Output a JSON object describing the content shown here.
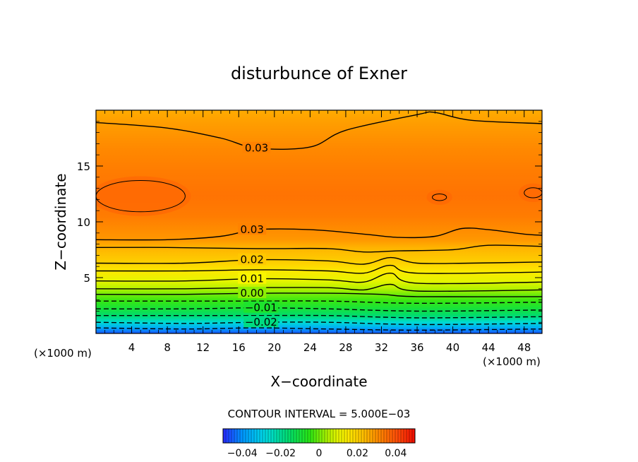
{
  "chart_data": {
    "type": "heatmap",
    "title": "disturbunce of Exner",
    "xlabel": "X−coordinate",
    "ylabel": "Z−coordinate",
    "x_unit_left": "(×1000 m)",
    "x_unit_right": "(×1000 m)",
    "xlim": [
      0,
      50
    ],
    "ylim": [
      0,
      20
    ],
    "x_ticks": [
      4,
      8,
      12,
      16,
      20,
      24,
      28,
      32,
      36,
      40,
      44,
      48
    ],
    "y_ticks": [
      5,
      10,
      15
    ],
    "contour_interval_text": "CONTOUR INTERVAL = 5.000E−03",
    "contour_interval": 0.005,
    "colorbar": {
      "range": [
        -0.05,
        0.05
      ],
      "ticks": [
        -0.04,
        -0.02,
        0,
        0.02,
        0.04
      ],
      "tick_labels": [
        "−0.04",
        "−0.02",
        "0",
        "0.02",
        "0.04"
      ]
    },
    "contour_labels": [
      {
        "text": "0.03",
        "x": 18.0,
        "z": 16.6
      },
      {
        "text": "0.03",
        "x": 17.5,
        "z": 9.3
      },
      {
        "text": "0.02",
        "x": 17.5,
        "z": 6.6
      },
      {
        "text": "0.01",
        "x": 17.5,
        "z": 4.9
      },
      {
        "text": "0.00",
        "x": 17.5,
        "z": 3.6
      },
      {
        "text": "−0.01",
        "x": 18.5,
        "z": 2.3
      },
      {
        "text": "−0.02",
        "x": 18.5,
        "z": 1.0
      }
    ],
    "contours": [
      {
        "level": 0.03,
        "points": [
          [
            0,
            18.9
          ],
          [
            8,
            18.4
          ],
          [
            14,
            17.5
          ],
          [
            18,
            16.6
          ],
          [
            24,
            16.7
          ],
          [
            28,
            18.2
          ],
          [
            36,
            19.6
          ],
          [
            38,
            19.8
          ],
          [
            42,
            19.1
          ],
          [
            50,
            18.8
          ]
        ]
      },
      {
        "level": 0.03,
        "points": [
          [
            0,
            8.4
          ],
          [
            8,
            8.4
          ],
          [
            14,
            8.7
          ],
          [
            18,
            9.3
          ],
          [
            24,
            9.3
          ],
          [
            30,
            8.9
          ],
          [
            34,
            8.6
          ],
          [
            38,
            8.7
          ],
          [
            41,
            9.4
          ],
          [
            44,
            9.3
          ],
          [
            48,
            8.9
          ],
          [
            50,
            8.8
          ]
        ]
      },
      {
        "level": 0.025,
        "points": [
          [
            0,
            7.7
          ],
          [
            8,
            7.7
          ],
          [
            18,
            7.6
          ],
          [
            26,
            7.6
          ],
          [
            30,
            7.3
          ],
          [
            34,
            7.4
          ],
          [
            40,
            7.5
          ],
          [
            44,
            7.9
          ],
          [
            50,
            7.8
          ]
        ]
      },
      {
        "level": 0.02,
        "points": [
          [
            0,
            6.3
          ],
          [
            10,
            6.3
          ],
          [
            18,
            6.6
          ],
          [
            26,
            6.5
          ],
          [
            30,
            6.2
          ],
          [
            33,
            6.8
          ],
          [
            36,
            6.3
          ],
          [
            42,
            6.3
          ],
          [
            50,
            6.4
          ]
        ]
      },
      {
        "level": 0.015,
        "points": [
          [
            0,
            5.6
          ],
          [
            10,
            5.6
          ],
          [
            18,
            5.7
          ],
          [
            26,
            5.6
          ],
          [
            30,
            5.4
          ],
          [
            33,
            6.1
          ],
          [
            36,
            5.4
          ],
          [
            50,
            5.5
          ]
        ]
      },
      {
        "level": 0.01,
        "points": [
          [
            0,
            4.7
          ],
          [
            10,
            4.7
          ],
          [
            18,
            4.9
          ],
          [
            26,
            4.8
          ],
          [
            30,
            4.6
          ],
          [
            33,
            5.4
          ],
          [
            36,
            4.5
          ],
          [
            50,
            4.6
          ]
        ]
      },
      {
        "level": 0.005,
        "points": [
          [
            0,
            4.0
          ],
          [
            10,
            4.0
          ],
          [
            18,
            4.1
          ],
          [
            26,
            4.1
          ],
          [
            30,
            3.9
          ],
          [
            33,
            4.4
          ],
          [
            36,
            3.8
          ],
          [
            50,
            3.9
          ]
        ]
      },
      {
        "level": 0.0,
        "points": [
          [
            0,
            3.5
          ],
          [
            10,
            3.5
          ],
          [
            18,
            3.6
          ],
          [
            26,
            3.6
          ],
          [
            32,
            3.5
          ],
          [
            36,
            3.3
          ],
          [
            50,
            3.3
          ]
        ]
      },
      {
        "level": -0.005,
        "points": [
          [
            0,
            2.9
          ],
          [
            10,
            2.9
          ],
          [
            18,
            2.9
          ],
          [
            26,
            2.9
          ],
          [
            36,
            2.7
          ],
          [
            50,
            2.8
          ]
        ]
      },
      {
        "level": -0.01,
        "points": [
          [
            0,
            2.2
          ],
          [
            10,
            2.2
          ],
          [
            18,
            2.3
          ],
          [
            26,
            2.2
          ],
          [
            36,
            2.0
          ],
          [
            50,
            2.1
          ]
        ]
      },
      {
        "level": -0.015,
        "points": [
          [
            0,
            1.6
          ],
          [
            10,
            1.6
          ],
          [
            18,
            1.6
          ],
          [
            26,
            1.6
          ],
          [
            36,
            1.4
          ],
          [
            50,
            1.5
          ]
        ]
      },
      {
        "level": -0.02,
        "points": [
          [
            0,
            1.0
          ],
          [
            10,
            0.9
          ],
          [
            18,
            1.0
          ],
          [
            26,
            1.0
          ],
          [
            36,
            0.8
          ],
          [
            50,
            0.9
          ]
        ]
      },
      {
        "level": -0.025,
        "points": [
          [
            0,
            0.5
          ],
          [
            10,
            0.4
          ],
          [
            18,
            0.5
          ],
          [
            26,
            0.4
          ],
          [
            36,
            0.3
          ],
          [
            50,
            0.4
          ]
        ]
      }
    ],
    "closed_contours": [
      {
        "level": 0.035,
        "cx": 5,
        "cz": 12.3,
        "rx": 5,
        "rz": 1.4
      },
      {
        "level": 0.035,
        "cx": 38.5,
        "cz": 12.2,
        "rx": 0.8,
        "rz": 0.3
      },
      {
        "level": 0.035,
        "cx": 49,
        "cz": 12.6,
        "rx": 1.0,
        "rz": 0.45
      }
    ],
    "field_profile": [
      {
        "z": 0.0,
        "value": -0.046
      },
      {
        "z": 0.5,
        "value": -0.036
      },
      {
        "z": 1.0,
        "value": -0.026
      },
      {
        "z": 1.6,
        "value": -0.016
      },
      {
        "z": 2.2,
        "value": -0.01
      },
      {
        "z": 2.9,
        "value": -0.004
      },
      {
        "z": 3.5,
        "value": 0.0
      },
      {
        "z": 4.0,
        "value": 0.005
      },
      {
        "z": 4.7,
        "value": 0.01
      },
      {
        "z": 5.6,
        "value": 0.015
      },
      {
        "z": 6.3,
        "value": 0.02
      },
      {
        "z": 7.7,
        "value": 0.025
      },
      {
        "z": 8.4,
        "value": 0.029
      },
      {
        "z": 10.5,
        "value": 0.033
      },
      {
        "z": 12.3,
        "value": 0.0345
      },
      {
        "z": 14.5,
        "value": 0.033
      },
      {
        "z": 16.6,
        "value": 0.031
      },
      {
        "z": 18.9,
        "value": 0.028
      },
      {
        "z": 20.0,
        "value": 0.026
      }
    ]
  }
}
